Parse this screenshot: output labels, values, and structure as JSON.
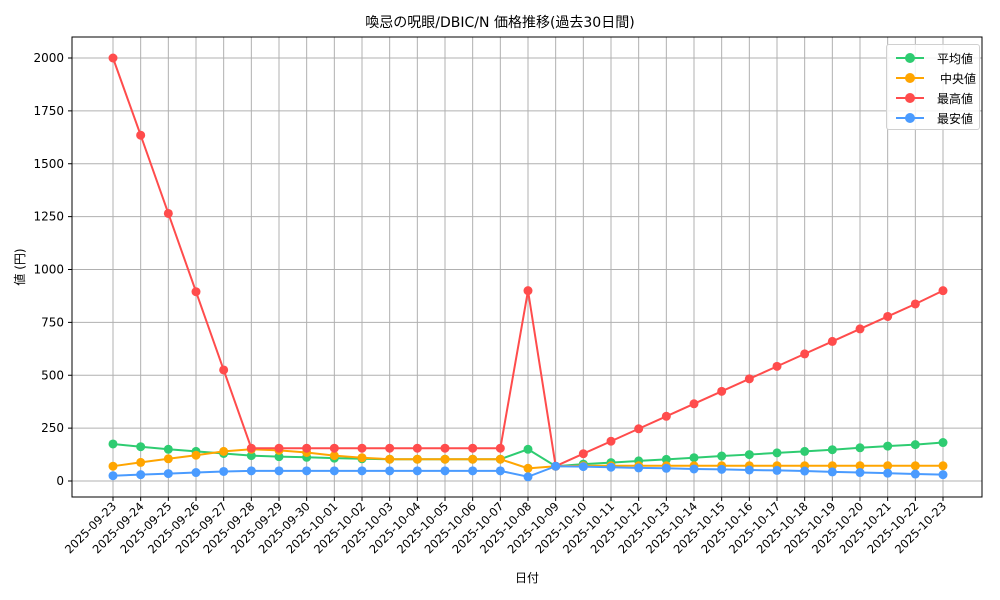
{
  "chart_data": {
    "type": "line",
    "title": "喚忌の呪眼/DBIC/N 価格推移(過去30日間)",
    "xlabel": "日付",
    "ylabel": "値 (円)",
    "ylim": [
      -75,
      2100
    ],
    "yticks": [
      0,
      250,
      500,
      750,
      1000,
      1250,
      1500,
      1750,
      2000
    ],
    "grid": true,
    "legend_position": "upper right",
    "x": [
      "2025-09-23",
      "2025-09-24",
      "2025-09-25",
      "2025-09-26",
      "2025-09-27",
      "2025-09-28",
      "2025-09-29",
      "2025-09-30",
      "2025-10-01",
      "2025-10-02",
      "2025-10-03",
      "2025-10-04",
      "2025-10-05",
      "2025-10-06",
      "2025-10-07",
      "2025-10-08",
      "2025-10-09",
      "2025-10-10",
      "2025-10-11",
      "2025-10-12",
      "2025-10-13",
      "2025-10-14",
      "2025-10-15",
      "2025-10-16",
      "2025-10-17",
      "2025-10-18",
      "2025-10-19",
      "2025-10-20",
      "2025-10-21",
      "2025-10-22",
      "2025-10-23"
    ],
    "series": [
      {
        "name": "平均値",
        "color": "#2ecc71",
        "values": [
          175,
          162,
          150,
          140,
          130,
          120,
          115,
          112,
          108,
          105,
          103,
          103,
          103,
          103,
          103,
          150,
          70,
          80,
          87,
          95,
          102,
          110,
          118,
          125,
          133,
          140,
          148,
          157,
          165,
          172,
          182
        ]
      },
      {
        "name": "中央値",
        "color": "#ffa500",
        "values": [
          70,
          88,
          105,
          122,
          140,
          150,
          145,
          135,
          120,
          110,
          103,
          103,
          103,
          103,
          103,
          60,
          70,
          72,
          72,
          72,
          72,
          72,
          72,
          72,
          72,
          72,
          72,
          72,
          72,
          72,
          72
        ]
      },
      {
        "name": "最高値",
        "color": "#ff4c4c",
        "values": [
          2000,
          1635,
          1265,
          895,
          525,
          155,
          155,
          155,
          155,
          155,
          155,
          155,
          155,
          155,
          155,
          900,
          70,
          129,
          188,
          247,
          306,
          365,
          424,
          483,
          542,
          601,
          660,
          719,
          778,
          837,
          900
        ]
      },
      {
        "name": "最安値",
        "color": "#4a9bff",
        "values": [
          25,
          30,
          35,
          40,
          45,
          48,
          48,
          48,
          48,
          48,
          48,
          48,
          48,
          48,
          48,
          20,
          70,
          68,
          65,
          62,
          60,
          57,
          55,
          52,
          50,
          47,
          43,
          40,
          37,
          33,
          30
        ]
      }
    ]
  },
  "legend": {
    "items": [
      {
        "label": "平均値",
        "color": "#2ecc71"
      },
      {
        "label": "中央値",
        "color": "#ffa500"
      },
      {
        "label": "最高値",
        "color": "#ff4c4c"
      },
      {
        "label": "最安値",
        "color": "#4a9bff"
      }
    ]
  }
}
